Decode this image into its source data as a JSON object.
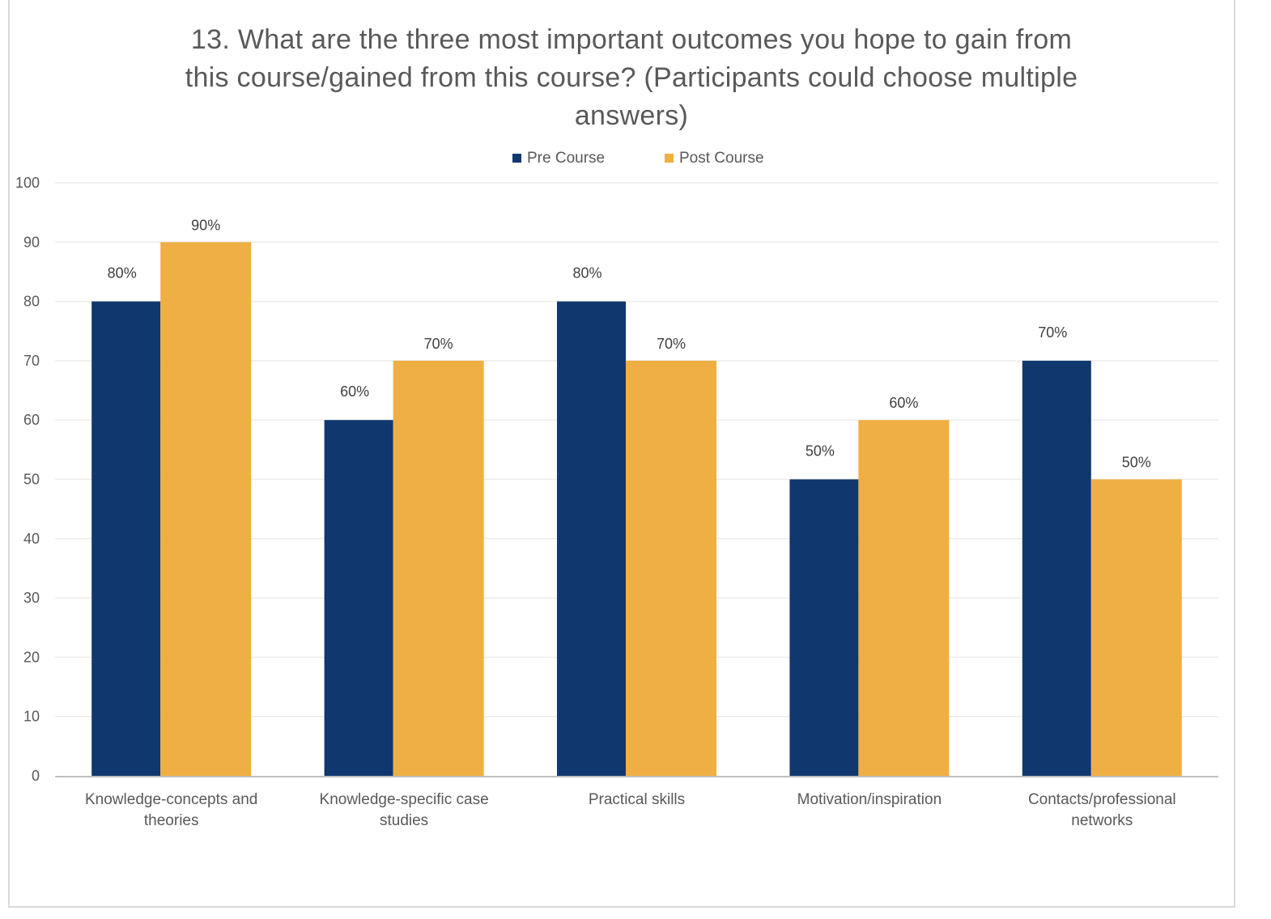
{
  "chart_data": {
    "type": "bar",
    "title": "13. What are the three most important outcomes you hope to gain from this course/gained from this course? (Participants could choose multiple answers)",
    "title_lines": [
      "13. What are the three most important outcomes you hope to gain from",
      "this course/gained from this course? (Participants could choose multiple",
      "answers)"
    ],
    "xlabel": "",
    "ylabel": "",
    "ylim": [
      0,
      100
    ],
    "yticks": [
      0,
      10,
      20,
      30,
      40,
      50,
      60,
      70,
      80,
      90,
      100
    ],
    "grid": true,
    "legend_position": "top-center",
    "categories": [
      [
        "Knowledge-concepts and",
        "theories"
      ],
      [
        "Knowledge-specific case",
        "studies"
      ],
      [
        "Practical skills"
      ],
      [
        "Motivation/inspiration"
      ],
      [
        "Contacts/professional",
        "networks"
      ]
    ],
    "series": [
      {
        "name": "Pre Course",
        "color": "#10386e",
        "values": [
          80,
          60,
          80,
          50,
          70
        ],
        "labels": [
          "80%",
          "60%",
          "80%",
          "50%",
          "70%"
        ]
      },
      {
        "name": "Post Course",
        "color": "#f0af44",
        "values": [
          90,
          70,
          70,
          60,
          50
        ],
        "labels": [
          "90%",
          "70%",
          "70%",
          "60%",
          "50%"
        ]
      }
    ]
  }
}
